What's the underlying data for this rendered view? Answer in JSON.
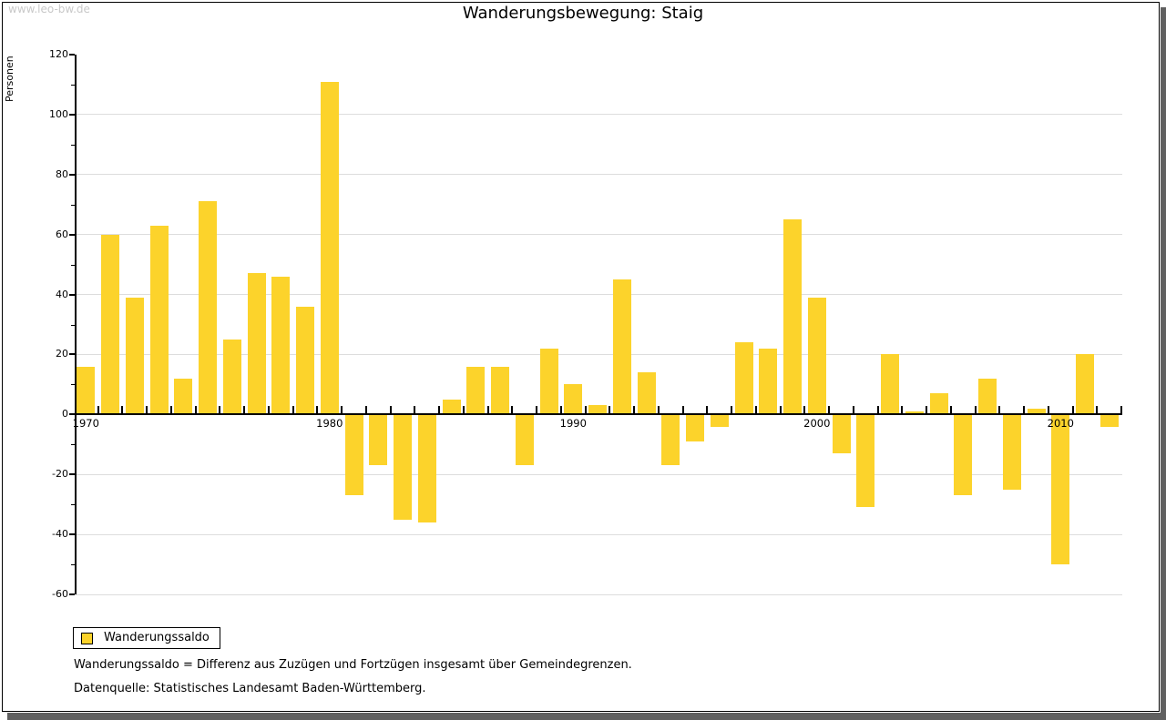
{
  "watermark": "www.leo-bw.de",
  "title": "Wanderungsbewegung: Staig",
  "legend": {
    "label": "Wanderungssaldo",
    "swatch_color": "#FCD32B"
  },
  "footnotes": {
    "line1": "Wanderungssaldo = Differenz aus Zuzügen und Fortzügen insgesamt über Gemeindegrenzen.",
    "line2": "Datenquelle: Statistisches Landesamt Baden-Württemberg."
  },
  "colors": {
    "bar": "#FCD32B",
    "gridline": "#dddddd",
    "axis": "#000000",
    "watermark": "#c9c9c9",
    "frame_shadow": "#606060"
  },
  "chart_data": {
    "type": "bar",
    "title": "Wanderungsbewegung: Staig",
    "xlabel": "",
    "ylabel": "Personen",
    "ylim": [
      -60,
      120
    ],
    "ytick_labels": [
      120,
      100,
      80,
      60,
      40,
      20,
      0,
      -20,
      -40,
      -60
    ],
    "ytick_minor": [
      110,
      90,
      70,
      50,
      30,
      10,
      -10,
      -30,
      -50
    ],
    "gridline_values": [
      100,
      80,
      60,
      40,
      20,
      -20,
      -40,
      -60
    ],
    "grid": true,
    "legend_position": "bottom-left",
    "xtick_labels": [
      "1970",
      "1980",
      "1990",
      "2000",
      "2010"
    ],
    "categories": [
      1970,
      1971,
      1972,
      1973,
      1974,
      1975,
      1976,
      1977,
      1978,
      1979,
      1980,
      1981,
      1982,
      1983,
      1984,
      1985,
      1986,
      1987,
      1988,
      1989,
      1990,
      1991,
      1992,
      1993,
      1994,
      1995,
      1996,
      1997,
      1998,
      1999,
      2000,
      2001,
      2002,
      2003,
      2004,
      2005,
      2006,
      2007,
      2008,
      2009,
      2010,
      2011,
      2012
    ],
    "series": [
      {
        "name": "Wanderungssaldo",
        "values": [
          16,
          60,
          39,
          63,
          12,
          71,
          25,
          47,
          46,
          36,
          111,
          -27,
          -17,
          -35,
          -36,
          5,
          16,
          16,
          -17,
          22,
          10,
          3,
          45,
          14,
          -17,
          -9,
          -4,
          24,
          22,
          65,
          39,
          -13,
          -31,
          20,
          1,
          7,
          -27,
          12,
          -25,
          2,
          -50,
          20,
          -4
        ]
      }
    ]
  }
}
